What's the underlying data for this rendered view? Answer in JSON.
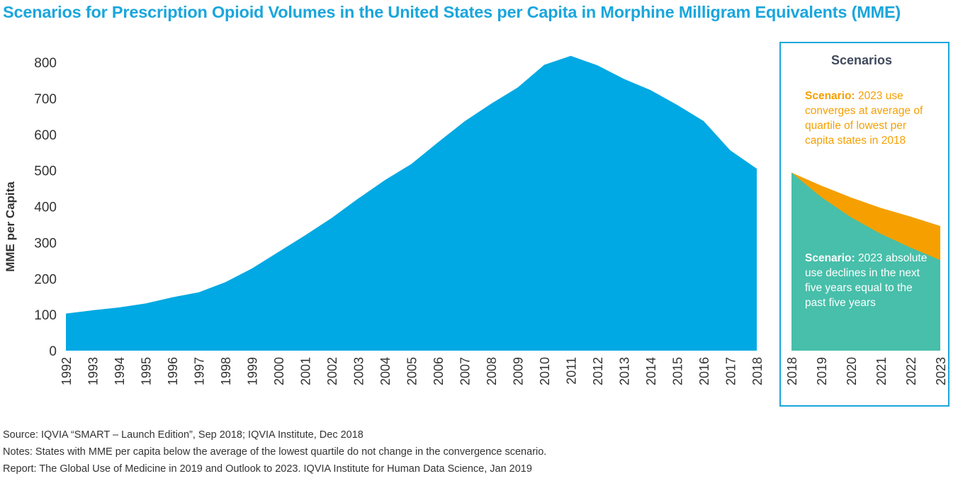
{
  "title": "Scenarios for Prescription Opioid Volumes in the United States per Capita in Morphine Milligram Equivalents (MME)",
  "chart_data": [
    {
      "type": "area",
      "ylabel": "MME per Capita",
      "ylim": [
        0,
        800
      ],
      "yticks": [
        0,
        100,
        200,
        300,
        400,
        500,
        600,
        700,
        800
      ],
      "x": [
        "1992",
        "1993",
        "1994",
        "1995",
        "1996",
        "1997",
        "1998",
        "1999",
        "2000",
        "2001",
        "2002",
        "2003",
        "2004",
        "2005",
        "2006",
        "2007",
        "2008",
        "2009",
        "2010",
        "2011",
        "2012",
        "2013",
        "2014",
        "2015",
        "2016",
        "2017",
        "2018"
      ],
      "values": [
        103,
        112,
        120,
        131,
        148,
        162,
        190,
        228,
        274,
        320,
        368,
        422,
        473,
        518,
        578,
        636,
        685,
        730,
        793,
        818,
        792,
        754,
        723,
        682,
        637,
        556,
        505
      ],
      "color": "#00a9e3"
    },
    {
      "type": "area",
      "panel_title": "Scenarios",
      "x": [
        "2018",
        "2019",
        "2020",
        "2021",
        "2022",
        "2023"
      ],
      "series": [
        {
          "values": [
            494,
            458,
            425,
            396,
            372,
            346
          ],
          "color": "#f5a000"
        },
        {
          "values": [
            494,
            426,
            370,
            324,
            286,
            251
          ],
          "color": "#47bfaa"
        }
      ]
    }
  ],
  "scenarios": {
    "convergence": {
      "label": "Scenario:",
      "text": " 2023 use converges at average of quartile of lowest per capita states in 2018"
    },
    "decline": {
      "label": "Scenario:",
      "text": " 2023 absolute use declines in the next five years equal to the past five years"
    }
  },
  "footer": {
    "source": "Source: IQVIA “SMART – Launch Edition”, Sep 2018; IQVIA Institute, Dec 2018",
    "notes": "Notes: States with MME per capita below the average of the lowest quartile do not change in the convergence scenario.",
    "report": "Report: The Global Use of Medicine in 2019 and Outlook to 2023. IQVIA Institute for Human Data Science, Jan 2019"
  },
  "colors": {
    "title": "#1aa6dc",
    "main_area": "#00a9e3",
    "convergence": "#f5a000",
    "decline": "#47bfaa",
    "panel_border": "#1aa6dc"
  }
}
